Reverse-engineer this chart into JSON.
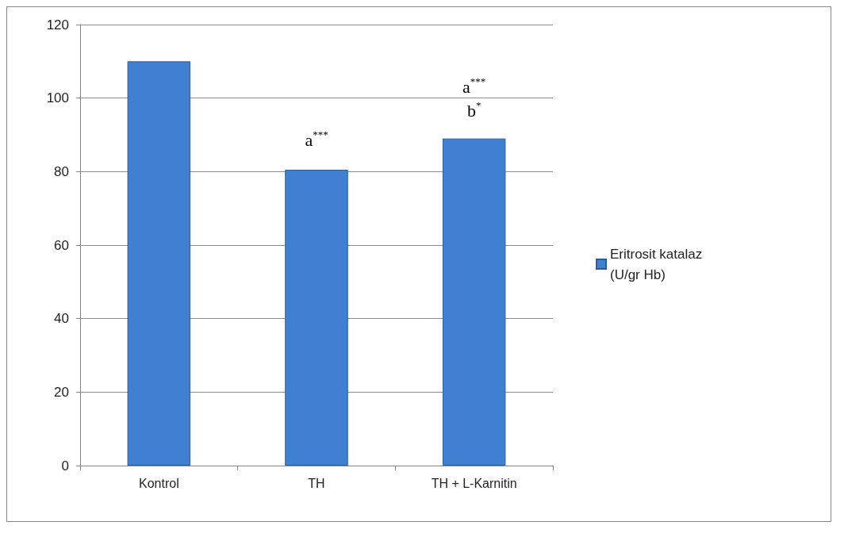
{
  "chart_data": {
    "type": "bar",
    "categories": [
      "Kontrol",
      "TH",
      "TH + L-Karnitin"
    ],
    "series": [
      {
        "name": "Eritrosit katalaz (U/gr Hb)",
        "color": "#3f80d2",
        "values": [
          110,
          80.5,
          89
        ]
      }
    ],
    "ylim": [
      0,
      120
    ],
    "yticks": [
      0,
      20,
      40,
      60,
      80,
      100,
      120
    ],
    "grid": "y",
    "legend": "right",
    "annotations": [
      "a$^{***}$",
      "a$^{***}$",
      "b$^{*}$"
    ]
  }
}
